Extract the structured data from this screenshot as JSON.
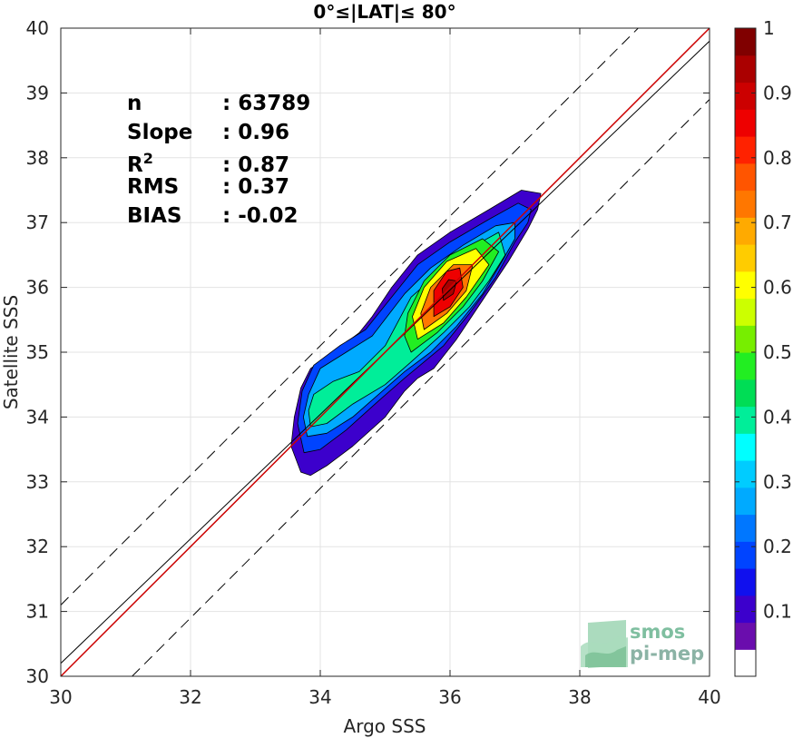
{
  "chart_data": {
    "type": "heatmap",
    "title": "0°≤|LAT|≤ 80°",
    "xlabel": "Argo SSS",
    "ylabel": "Satellite SSS",
    "xlim": [
      30,
      40
    ],
    "ylim": [
      30,
      40
    ],
    "xticks": [
      "30",
      "32",
      "34",
      "36",
      "38",
      "40"
    ],
    "yticks": [
      "30",
      "31",
      "32",
      "33",
      "34",
      "35",
      "36",
      "37",
      "38",
      "39",
      "40"
    ],
    "grid": true,
    "density_peak": {
      "x": 36.0,
      "y": 36.0
    },
    "reference_lines": {
      "one_to_one_color": "#cc0000",
      "regression": {
        "slope": 0.96,
        "intercept": 1.4
      },
      "envelope_offset": 1.1
    },
    "stats": [
      {
        "key": "n",
        "value": ": 63789"
      },
      {
        "key": "Slope",
        "value": ": 0.96"
      },
      {
        "key": "R",
        "sup": "2",
        "value": ": 0.87"
      },
      {
        "key": "RMS",
        "value": ": 0.37"
      },
      {
        "key": "BIAS",
        "value": ": -0.02"
      }
    ],
    "colorbar": {
      "ticks": [
        "0.1",
        "0.2",
        "0.3",
        "0.4",
        "0.5",
        "0.6",
        "0.7",
        "0.8",
        "0.9",
        "1"
      ],
      "colors": [
        "#ffffff",
        "#6a0dad",
        "#3c00cc",
        "#1010ee",
        "#0044ff",
        "#0077ff",
        "#00aaff",
        "#00ccff",
        "#00ffff",
        "#00ee99",
        "#00dd55",
        "#22ee22",
        "#77ee00",
        "#ccff00",
        "#ffff00",
        "#ffcc00",
        "#ffaa00",
        "#ff7700",
        "#ff5500",
        "#ff2200",
        "#ee0000",
        "#cc0000",
        "#aa0000",
        "#800000"
      ]
    }
  },
  "logo": {
    "line1": "smos",
    "line2": "pi-mep"
  }
}
